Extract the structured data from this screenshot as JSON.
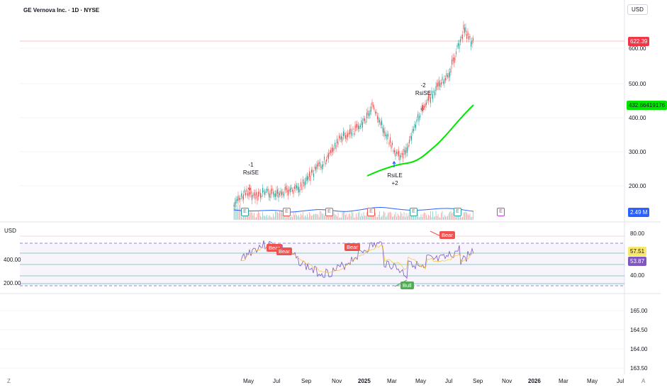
{
  "symbol_title": "GE Vernova Inc. · 1D · NYSE",
  "currency_top": "USD",
  "currency_rsi": "USD",
  "main_axis": [
    "600.00",
    "500.00",
    "400.00",
    "300.00",
    "200.00"
  ],
  "rsi_axis_right": [
    "80.00",
    "40.00"
  ],
  "rsi_axis_left": [
    "400.00",
    "200.00"
  ],
  "lower_axis": [
    "165.00",
    "164.50",
    "164.00",
    "163.50"
  ],
  "tags": {
    "last_price": "622.39",
    "ma_value": "432.66419176",
    "volume": "2.49 M",
    "rsi_a": "57.51",
    "rsi_b": "53.87"
  },
  "date_labels": [
    "May",
    "Jul",
    "Sep",
    "Nov",
    "2025",
    "Mar",
    "May",
    "Jul",
    "Sep",
    "Nov",
    "2026",
    "Mar",
    "May",
    "Jul"
  ],
  "annotations": {
    "rsise_1_num": "-1",
    "rsise_1_text": "RsiSE",
    "rsise_2_num": "-2",
    "rsise_2_text": "RsiSE",
    "rsile_text": "RsiLE",
    "rsile_num": "+2"
  },
  "earnings_marker": "E",
  "bear_labels": [
    "Bear",
    "Bear",
    "Bear",
    "Bear"
  ],
  "bull_label": "Bull",
  "tv_logo": "Z",
  "auto_label": "A",
  "colors": {
    "up": "#26a69a",
    "down": "#ef5350",
    "ma": "#00e600",
    "volume_ma": "#2962ff",
    "rsi": "#7e57c2",
    "rsi_signal": "#f7c948",
    "last_price": "#f23645"
  }
}
